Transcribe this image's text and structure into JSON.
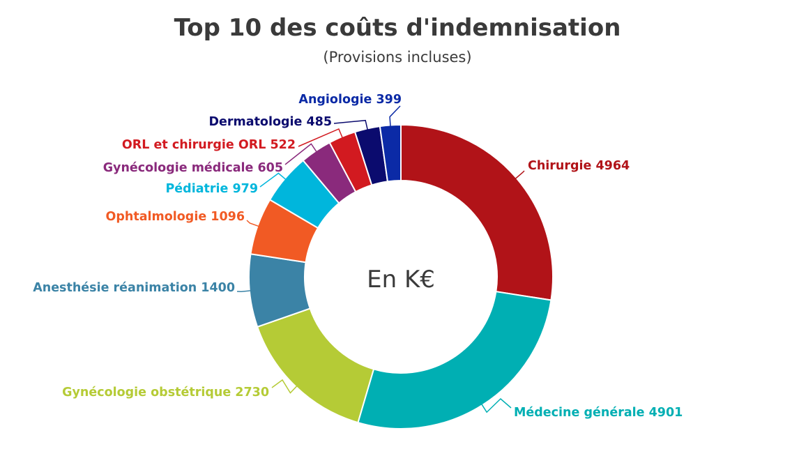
{
  "chart_data": {
    "type": "pie",
    "donut": true,
    "title": "Top 10 des coûts d'indemnisation",
    "subtitle": "(Provisions incluses)",
    "center_label": "En K€",
    "categories": [
      "Chirurgie",
      "Médecine générale",
      "Gynécologie obstétrique",
      "Anesthésie réanimation",
      "Ophtalmologie",
      "Pédiatrie",
      "Gynécologie médicale",
      "ORL et chirurgie ORL",
      "Dermatologie",
      "Angiologie"
    ],
    "values": [
      4964,
      4901,
      2730,
      1400,
      1096,
      979,
      605,
      522,
      485,
      399
    ],
    "colors": [
      "#b11318",
      "#00afb3",
      "#b5cb36",
      "#3b83a6",
      "#f15a24",
      "#00b6dc",
      "#8a2a7c",
      "#d21a20",
      "#0b0b6e",
      "#0b2aa6"
    ],
    "labels": [
      "Chirurgie 4964",
      "Médecine générale 4901",
      "Gynécologie obstétrique 2730",
      "Anesthésie réanimation 1400",
      "Ophtalmologie 1096",
      "Pédiatrie 979",
      "Gynécologie médicale 605",
      "ORL et chirurgie ORL 522",
      "Dermatologie 485",
      "Angiologie 399"
    ]
  }
}
